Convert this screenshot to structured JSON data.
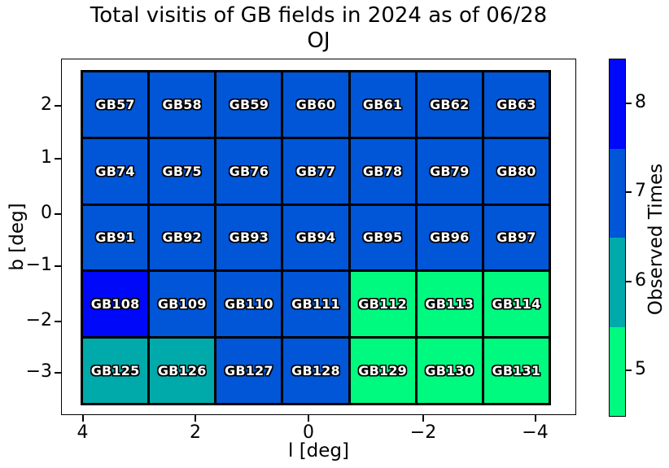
{
  "figure": {
    "title_line1": "Total visitis of GB fields in 2024 as of 06/28",
    "title_line2": "OJ"
  },
  "axes": {
    "xlabel": "l [deg]",
    "ylabel": "b [deg]",
    "xtick_labels": [
      "4",
      "2",
      "0",
      "−2",
      "−4"
    ],
    "ytick_labels": [
      "2",
      "1",
      "0",
      "−1",
      "−2",
      "−3"
    ]
  },
  "colorbar": {
    "label": "Observed Times",
    "tick_labels": [
      "8",
      "7",
      "6",
      "5"
    ],
    "segments": [
      {
        "value": 8,
        "color": "#0008FA"
      },
      {
        "value": 7,
        "color": "#0056D6"
      },
      {
        "value": 6,
        "color": "#00AAAA"
      },
      {
        "value": 5,
        "color": "#00FA80"
      }
    ]
  },
  "chart_data": {
    "type": "heatmap",
    "title": "Total visitis of GB fields in 2024 as of 06/28 OJ",
    "xlabel": "l [deg]",
    "ylabel": "b [deg]",
    "colorbar_label": "Observed Times",
    "x_axis": {
      "tick_values": [
        4,
        2,
        0,
        -2,
        -4
      ],
      "inverted": true
    },
    "y_axis": {
      "tick_values": [
        2,
        1,
        0,
        -1,
        -2,
        -3
      ]
    },
    "value_range": [
      5,
      8
    ],
    "value_colors": {
      "5": "#00FA80",
      "6": "#00AAAA",
      "7": "#0056D6",
      "8": "#0008FA"
    },
    "rows": [
      {
        "fields": [
          "GB57",
          "GB58",
          "GB59",
          "GB60",
          "GB61",
          "GB62",
          "GB63"
        ],
        "values": [
          7,
          7,
          7,
          7,
          7,
          7,
          7
        ]
      },
      {
        "fields": [
          "GB74",
          "GB75",
          "GB76",
          "GB77",
          "GB78",
          "GB79",
          "GB80"
        ],
        "values": [
          7,
          7,
          7,
          7,
          7,
          7,
          7
        ]
      },
      {
        "fields": [
          "GB91",
          "GB92",
          "GB93",
          "GB94",
          "GB95",
          "GB96",
          "GB97"
        ],
        "values": [
          7,
          7,
          7,
          7,
          7,
          7,
          7
        ]
      },
      {
        "fields": [
          "GB108",
          "GB109",
          "GB110",
          "GB111",
          "GB112",
          "GB113",
          "GB114"
        ],
        "values": [
          8,
          7,
          7,
          7,
          5,
          5,
          5
        ]
      },
      {
        "fields": [
          "GB125",
          "GB126",
          "GB127",
          "GB128",
          "GB129",
          "GB130",
          "GB131"
        ],
        "values": [
          6,
          6,
          7,
          7,
          5,
          5,
          5
        ]
      }
    ]
  }
}
